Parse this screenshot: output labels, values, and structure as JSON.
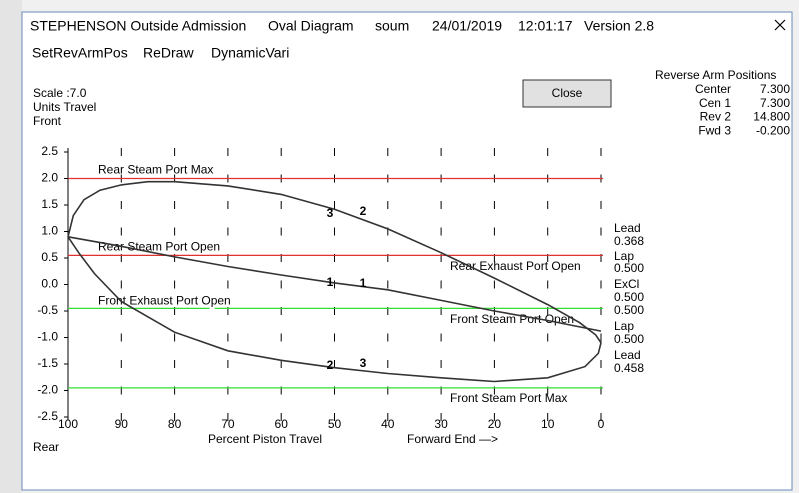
{
  "title_bar": [
    "STEPHENSON Outside Admission",
    "Oval Diagram",
    "soum",
    "24/01/2019",
    "12:01:17",
    "Version 2.8"
  ],
  "menu": [
    "SetRevArmPos",
    "ReDraw",
    "DynamicVari"
  ],
  "close_button": "Close",
  "reverse_arm": {
    "title": "Reverse Arm Positions",
    "rows": [
      [
        "Center",
        "7.300"
      ],
      [
        "Cen 1",
        "7.300"
      ],
      [
        "Rev 2",
        "14.800"
      ],
      [
        "Fwd 3",
        "-0.200"
      ]
    ]
  },
  "chart_data": {
    "type": "line",
    "scale_label": "Scale :7.0",
    "units_label": "Units Travel",
    "top_label": "Front",
    "bottom_label": "Rear",
    "x_label": "Percent Piston Travel",
    "x_label_right": "Forward End —>",
    "xlim": [
      100,
      0
    ],
    "ylim": [
      -2.5,
      2.5
    ],
    "xticks": [
      100,
      90,
      80,
      70,
      60,
      50,
      40,
      30,
      20,
      10,
      0
    ],
    "yticks": [
      2.5,
      {
        "value": 2,
        "label": "2.0"
      },
      1.5,
      {
        "value": 1,
        "label": "1.0"
      },
      0.5,
      {
        "value": 0,
        "label": "0.0"
      },
      -0.5,
      {
        "value": -1,
        "label": "-1.0"
      },
      -1.5,
      {
        "value": -2,
        "label": "-2.0"
      },
      -2.5
    ],
    "grid": true,
    "hlines": [
      {
        "value": 2.0,
        "label": "Rear Steam Port Max",
        "color": "#e03030",
        "label_side": "left"
      },
      {
        "value": 0.55,
        "label": "Rear Steam Port Open",
        "color": "#e03030",
        "label_side": "left"
      },
      {
        "value": -0.45,
        "label": "Front Exhaust Port Open",
        "color": "#33dd33",
        "label_side": "left"
      },
      {
        "value": -1.95,
        "label": "Front Steam Port Max",
        "color": "#33dd33",
        "label_side": "right"
      }
    ],
    "side_notes": [
      "Rear Exhaust Port Open",
      "Front Steam Port Open"
    ],
    "right_labels": [
      "Lead",
      "0.368",
      "Lap",
      "0.500",
      "ExCl",
      "0.500",
      "0.500",
      "Lap",
      "0.500",
      "Lead",
      "0.458"
    ],
    "curve_labels": [
      "3",
      "2",
      "1",
      "1",
      "2",
      "3"
    ],
    "series": [
      {
        "color": "#333333",
        "x": [
          100,
          99,
          97,
          94,
          90,
          85,
          80,
          70,
          60,
          50,
          40,
          30,
          20,
          10,
          4,
          1,
          0,
          0.5,
          3,
          10,
          20,
          30,
          40,
          50,
          60,
          70,
          80,
          90,
          95,
          98,
          100
        ],
        "values": [
          0.9,
          1.3,
          1.6,
          1.78,
          1.88,
          1.94,
          1.94,
          1.86,
          1.7,
          1.42,
          1.05,
          0.6,
          0.12,
          -0.38,
          -0.72,
          -0.95,
          -1.1,
          -1.3,
          -1.55,
          -1.76,
          -1.83,
          -1.76,
          -1.68,
          -1.57,
          -1.43,
          -1.25,
          -0.9,
          -0.32,
          0.2,
          0.6,
          0.9
        ]
      },
      {
        "color": "#333333",
        "x": [
          100,
          90,
          80,
          70,
          60,
          50,
          40,
          30,
          20,
          10,
          0
        ],
        "values": [
          0.9,
          0.72,
          0.52,
          0.34,
          0.18,
          0.03,
          -0.1,
          -0.3,
          -0.5,
          -0.68,
          -0.88
        ]
      }
    ]
  }
}
